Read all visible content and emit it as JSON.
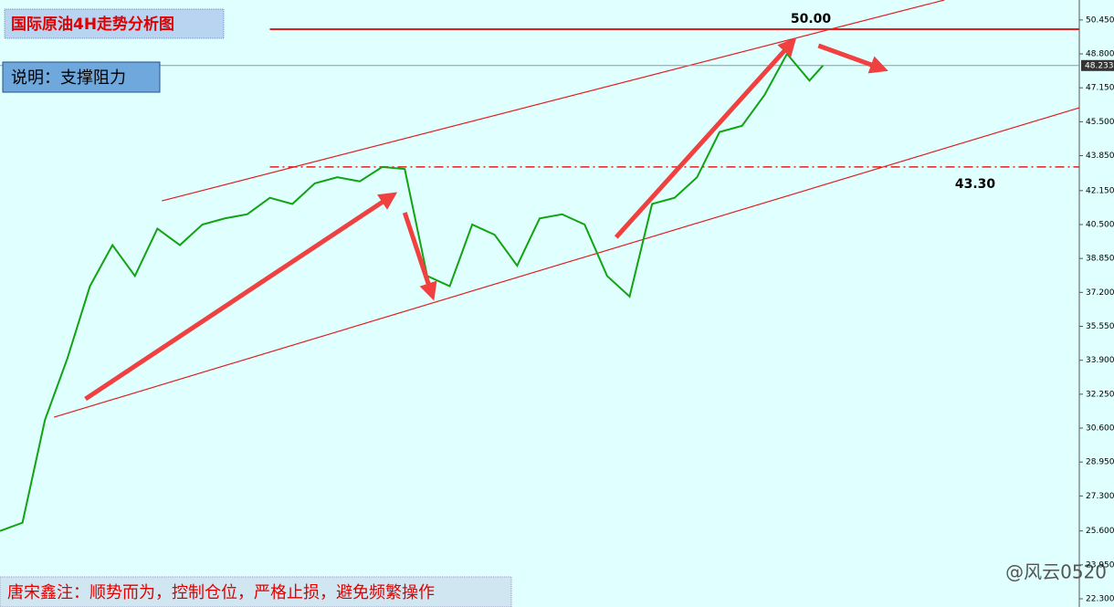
{
  "chart_data": {
    "type": "line",
    "title": "国际原油4H走势分析图",
    "subtitle": "说明：支撑阻力",
    "note": "唐宋鑫注：顺势而为，控制仓位，严格止损，避免频繁操作",
    "watermark": "@风云0520",
    "xlim": [
      0,
      240
    ],
    "ylim": [
      21.9,
      51.42
    ],
    "yticks": [
      {
        "value": 50.45,
        "label": "50.450"
      },
      {
        "value": 48.8,
        "label": "48.800"
      },
      {
        "value": 47.15,
        "label": "47.150"
      },
      {
        "value": 45.5,
        "label": "45.500"
      },
      {
        "value": 43.85,
        "label": "43.850"
      },
      {
        "value": 42.15,
        "label": "42.150"
      },
      {
        "value": 40.5,
        "label": "40.500"
      },
      {
        "value": 38.85,
        "label": "38.850"
      },
      {
        "value": 37.2,
        "label": "37.200"
      },
      {
        "value": 35.55,
        "label": "35.550"
      },
      {
        "value": 33.9,
        "label": "33.900"
      },
      {
        "value": 32.25,
        "label": "32.250"
      },
      {
        "value": 30.6,
        "label": "30.600"
      },
      {
        "value": 28.95,
        "label": "28.950"
      },
      {
        "value": 27.3,
        "label": "27.300"
      },
      {
        "value": 25.6,
        "label": "25.600"
      },
      {
        "value": 23.95,
        "label": "23.950"
      },
      {
        "value": 22.3,
        "label": "22.300"
      }
    ],
    "last_price": 48.233,
    "series": [
      {
        "color": "#12a312",
        "x": [
          0,
          5,
          10,
          15,
          20,
          25,
          30,
          35,
          40,
          45,
          50,
          55,
          60,
          65,
          70,
          75,
          80,
          85,
          90,
          95,
          100,
          105,
          110,
          115,
          120,
          125,
          130,
          135,
          140,
          145,
          150,
          155,
          160,
          165,
          170,
          175,
          180,
          183
        ],
        "values": [
          25.6,
          26,
          31,
          34,
          37.5,
          39.5,
          38,
          40.3,
          39.5,
          40.5,
          40.8,
          41,
          41.8,
          41.5,
          42.5,
          42.8,
          42.6,
          43.3,
          43.2,
          38,
          37.5,
          40.5,
          40,
          38.5,
          40.8,
          41,
          40.5,
          38,
          37,
          41.5,
          41.8,
          42.8,
          45,
          45.3,
          46.8,
          48.8,
          47.5,
          48.233
        ]
      }
    ],
    "levels": [
      {
        "value": 50.0,
        "label": "50.00",
        "style": "solid",
        "from": 60
      },
      {
        "value": 43.3,
        "label": "43.30",
        "style": "dashdot",
        "from": 60
      }
    ],
    "trendlines": [
      {
        "x": [
          36,
          210
        ],
        "y": [
          41.65,
          51.42
        ]
      },
      {
        "x": [
          12,
          240
        ],
        "y": [
          31.13,
          46.18
        ]
      }
    ],
    "arrows": [
      {
        "x": [
          19,
          87
        ],
        "y": [
          32.02,
          41.88
        ]
      },
      {
        "x": [
          90,
          96
        ],
        "y": [
          41.08,
          37.13
        ]
      },
      {
        "x": [
          137,
          176
        ],
        "y": [
          39.88,
          49.33
        ]
      },
      {
        "x": [
          182,
          196
        ],
        "y": [
          49.2,
          48.09
        ]
      }
    ]
  }
}
